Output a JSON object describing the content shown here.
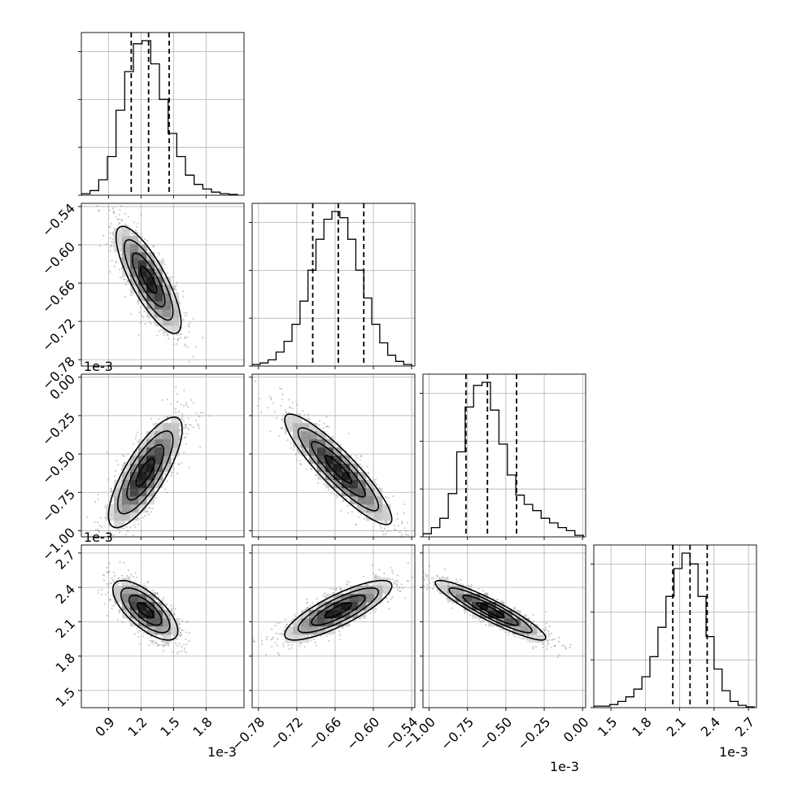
{
  "chart_data": {
    "type": "corner",
    "title": "",
    "grid": true,
    "n_params": 4,
    "params": [
      {
        "label": "",
        "offset_text": "1e-3",
        "range": [
          0.65,
          2.15
        ],
        "ticks": [
          0.9,
          1.2,
          1.5,
          1.8
        ],
        "tick_labels": [
          "0.9",
          "1.2",
          "1.5",
          "1.8"
        ],
        "quantiles": [
          1.11,
          1.27,
          1.46
        ],
        "hist_bins": [
          0.65,
          0.73,
          0.81,
          0.89,
          0.97,
          1.05,
          1.13,
          1.21,
          1.29,
          1.37,
          1.45,
          1.53,
          1.61,
          1.69,
          1.77,
          1.85,
          1.93,
          2.01,
          2.09
        ],
        "hist_counts": [
          0.01,
          0.03,
          0.1,
          0.25,
          0.55,
          0.8,
          0.98,
          1.0,
          0.85,
          0.62,
          0.4,
          0.25,
          0.13,
          0.07,
          0.04,
          0.02,
          0.01,
          0.005
        ]
      },
      {
        "label": "",
        "offset_text": "",
        "range": [
          -0.79,
          -0.535
        ],
        "ticks": [
          -0.78,
          -0.72,
          -0.66,
          -0.6,
          -0.54
        ],
        "tick_labels": [
          "−0.78",
          "−0.72",
          "−0.66",
          "−0.60",
          "−0.54"
        ],
        "quantiles": [
          -0.695,
          -0.655,
          -0.615
        ],
        "hist_bins": [
          -0.79,
          -0.7775,
          -0.765,
          -0.7525,
          -0.74,
          -0.7275,
          -0.715,
          -0.7025,
          -0.69,
          -0.6775,
          -0.665,
          -0.6525,
          -0.64,
          -0.6275,
          -0.615,
          -0.6025,
          -0.59,
          -0.5775,
          -0.565,
          -0.5525,
          -0.54
        ],
        "hist_counts": [
          0.01,
          0.02,
          0.04,
          0.09,
          0.16,
          0.27,
          0.42,
          0.62,
          0.82,
          0.95,
          1.0,
          0.96,
          0.82,
          0.62,
          0.44,
          0.27,
          0.15,
          0.07,
          0.03,
          0.01
        ]
      },
      {
        "label": "",
        "offset_text": "1e-3",
        "range": [
          -1.04,
          0.02
        ],
        "ticks": [
          -1.0,
          -0.75,
          -0.5,
          -0.25,
          0.0
        ],
        "tick_labels": [
          "−1.00",
          "−0.75",
          "−0.50",
          "−0.25",
          "0.00"
        ],
        "quantiles": [
          -0.76,
          -0.62,
          -0.43
        ],
        "hist_bins": [
          -1.04,
          -0.985,
          -0.93,
          -0.875,
          -0.82,
          -0.765,
          -0.71,
          -0.655,
          -0.6,
          -0.545,
          -0.49,
          -0.435,
          -0.38,
          -0.325,
          -0.27,
          -0.215,
          -0.16,
          -0.105,
          -0.05,
          0.005
        ],
        "hist_counts": [
          0.02,
          0.06,
          0.12,
          0.28,
          0.55,
          0.84,
          0.98,
          1.0,
          0.82,
          0.6,
          0.4,
          0.27,
          0.21,
          0.17,
          0.12,
          0.09,
          0.06,
          0.04,
          0.01
        ]
      },
      {
        "label": "",
        "offset_text": "1e-3",
        "range": [
          1.35,
          2.77
        ],
        "ticks": [
          1.5,
          1.8,
          2.1,
          2.4,
          2.7
        ],
        "tick_labels": [
          "1.5",
          "1.8",
          "2.1",
          "2.4",
          "2.7"
        ],
        "quantiles": [
          2.04,
          2.19,
          2.34
        ],
        "hist_bins": [
          1.35,
          1.42,
          1.49,
          1.56,
          1.63,
          1.7,
          1.77,
          1.84,
          1.91,
          1.98,
          2.05,
          2.12,
          2.19,
          2.26,
          2.33,
          2.4,
          2.47,
          2.54,
          2.61,
          2.68,
          2.75
        ],
        "hist_counts": [
          0.01,
          0.01,
          0.02,
          0.04,
          0.07,
          0.12,
          0.2,
          0.33,
          0.52,
          0.72,
          0.9,
          1.0,
          0.93,
          0.72,
          0.46,
          0.25,
          0.11,
          0.04,
          0.015,
          0.005
        ]
      }
    ],
    "pairs": [
      {
        "row": 1,
        "col": 0,
        "center": [
          1.27,
          -0.655
        ],
        "sigma": [
          0.15,
          0.042
        ],
        "rho": -0.8
      },
      {
        "row": 2,
        "col": 0,
        "center": [
          1.24,
          -0.62
        ],
        "sigma": [
          0.17,
          0.18
        ],
        "rho": 0.78
      },
      {
        "row": 2,
        "col": 1,
        "center": [
          -0.655,
          -0.6
        ],
        "sigma": [
          0.042,
          0.18
        ],
        "rho": -0.9
      },
      {
        "row": 3,
        "col": 0,
        "center": [
          1.24,
          2.2
        ],
        "sigma": [
          0.15,
          0.13
        ],
        "rho": -0.7
      },
      {
        "row": 3,
        "col": 1,
        "center": [
          -0.655,
          2.2
        ],
        "sigma": [
          0.042,
          0.13
        ],
        "rho": 0.82
      },
      {
        "row": 3,
        "col": 2,
        "center": [
          -0.6,
          2.2
        ],
        "sigma": [
          0.18,
          0.13
        ],
        "rho": -0.92
      }
    ],
    "contour_levels_sigma": [
      0.5,
      1.0,
      1.5,
      2.0
    ],
    "colors": {
      "line": "#000000",
      "grid": "#b0b0b0",
      "scatter": "#a0a0a0",
      "axes_edge": "#000000"
    }
  }
}
